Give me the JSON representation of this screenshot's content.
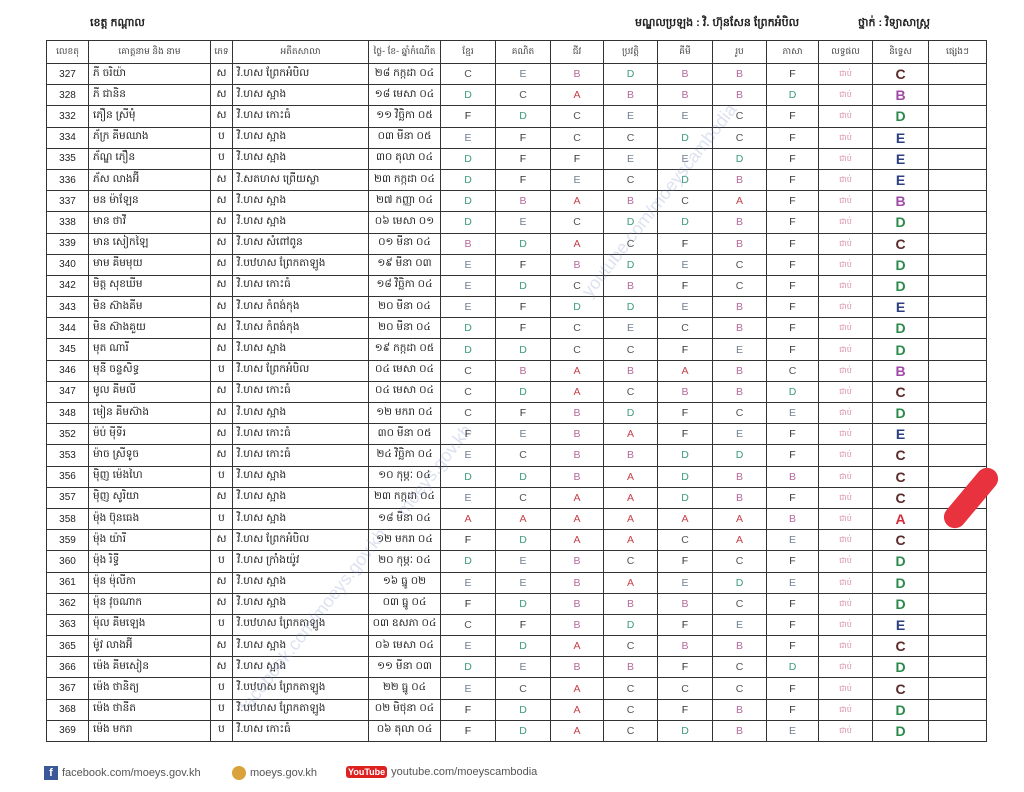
{
  "header": {
    "province": "ខេត្ត កណ្ដាល",
    "exam_center": "មណ្ឌលប្រឡង : វិ. ហ៊ុនសែន ព្រែកអំបិល",
    "class": "ថ្នាក់ : វិទ្យាសាស្ត្រ"
  },
  "columns": [
    "លេខតុ",
    "គោត្តនាម និង នាម",
    "ភេទ",
    "អតីតសាលា",
    "ថ្ងៃ- ខែ- ឆ្នាំកំណើត",
    "ខ្មែរ",
    "គណិត",
    "ជីវ",
    "ប្រវត្តិ",
    "គីមី",
    "រូប",
    "ភាសា",
    "លទ្ធផល",
    "និទ្ទេស",
    "ផ្សេងៗ"
  ],
  "grade_colors": {
    "A": "#c4404a",
    "B": "#b5699a",
    "C": "#555555",
    "D": "#3d9a7a",
    "E": "#6f7f92",
    "F": "#333333"
  },
  "final_grade_colors": {
    "A": "#d42a3a",
    "B": "#a04aa8",
    "C": "#5a2a2a",
    "D": "#2a8a4a",
    "E": "#2c4080"
  },
  "rows": [
    {
      "id": "327",
      "name": "ភី ចរិយ៉ា",
      "sex": "ស",
      "school": "វិ.ហស ព្រែកអំបិល",
      "dob": "២៨ កក្កដា ០៤",
      "scores": [
        "C",
        "E",
        "B",
        "D",
        "B",
        "B",
        "F"
      ],
      "result": "ជាប់",
      "grade": "C"
    },
    {
      "id": "328",
      "name": "ភី ជានិន",
      "sex": "ស",
      "school": "វិ.ហស ស្អាង",
      "dob": "១៨ មេសា ០៤",
      "scores": [
        "D",
        "C",
        "A",
        "B",
        "B",
        "B",
        "D"
      ],
      "result": "ជាប់",
      "grade": "B"
    },
    {
      "id": "332",
      "name": "ភឿន ស្រីមុំ",
      "sex": "ស",
      "school": "វិ.ហស កោះធំ",
      "dob": "១១ វិច្ឆិកា ០៥",
      "scores": [
        "F",
        "D",
        "C",
        "E",
        "E",
        "C",
        "F"
      ],
      "result": "ជាប់",
      "grade": "D"
    },
    {
      "id": "334",
      "name": "ភ័ក្រ គីមឈាង",
      "sex": "ប",
      "school": "វិ.ហស ស្អាង",
      "dob": "០៣ មីនា ០៥",
      "scores": [
        "E",
        "F",
        "C",
        "C",
        "D",
        "C",
        "F"
      ],
      "result": "ជាប់",
      "grade": "E"
    },
    {
      "id": "335",
      "name": "ភ័ណ្ឌ ភឿន",
      "sex": "ប",
      "school": "វិ.ហស ស្អាង",
      "dob": "៣០ តុលា ០៤",
      "scores": [
        "D",
        "F",
        "F",
        "E",
        "E",
        "D",
        "F"
      ],
      "result": "ជាប់",
      "grade": "E"
    },
    {
      "id": "336",
      "name": "ភ័ស លាងអ៊ី",
      "sex": "ស",
      "school": "វិ.សតហស ព្រើយស្លា",
      "dob": "២៣ កក្កដា ០៤",
      "scores": [
        "D",
        "F",
        "E",
        "C",
        "D",
        "B",
        "F"
      ],
      "result": "ជាប់",
      "grade": "E"
    },
    {
      "id": "337",
      "name": "មន ម៉ាឡែន",
      "sex": "ស",
      "school": "វិ.ហស ស្អាង",
      "dob": "២៧ កញ្ញា ០៤",
      "scores": [
        "D",
        "B",
        "A",
        "B",
        "C",
        "A",
        "F"
      ],
      "result": "ជាប់",
      "grade": "B"
    },
    {
      "id": "338",
      "name": "មាន ថាវី",
      "sex": "ស",
      "school": "វិ.ហស ស្អាង",
      "dob": "០៦ មេសា ០១",
      "scores": [
        "D",
        "E",
        "C",
        "D",
        "D",
        "B",
        "F"
      ],
      "result": "ជាប់",
      "grade": "D"
    },
    {
      "id": "339",
      "name": "មាន សៀកឡៃ",
      "sex": "ស",
      "school": "វិ.ហស សំពៅពូន",
      "dob": "០១ មីនា ០៤",
      "scores": [
        "B",
        "D",
        "A",
        "C",
        "F",
        "B",
        "F"
      ],
      "result": "ជាប់",
      "grade": "C"
    },
    {
      "id": "340",
      "name": "មាម គីមមុយ",
      "sex": "ស",
      "school": "វិ.បឋហស ព្រែកតាឡូង",
      "dob": "១៩ មីនា ០៣",
      "scores": [
        "E",
        "F",
        "B",
        "D",
        "E",
        "C",
        "F"
      ],
      "result": "ជាប់",
      "grade": "D"
    },
    {
      "id": "342",
      "name": "មិត្ត សុខឃីម",
      "sex": "ស",
      "school": "វិ.ហស កោះធំ",
      "dob": "១៨ វិច្ឆិកា ០៤",
      "scores": [
        "E",
        "D",
        "C",
        "B",
        "F",
        "C",
        "F"
      ],
      "result": "ជាប់",
      "grade": "D"
    },
    {
      "id": "343",
      "name": "មិន ស៊ាងគីម",
      "sex": "ស",
      "school": "វិ.ហស កំពង់កុង",
      "dob": "២០ មីនា ០៤",
      "scores": [
        "E",
        "F",
        "D",
        "D",
        "E",
        "B",
        "F"
      ],
      "result": "ជាប់",
      "grade": "E"
    },
    {
      "id": "344",
      "name": "មិន ស៊ាងគួយ",
      "sex": "ស",
      "school": "វិ.ហស កំពង់កុង",
      "dob": "២០ មីនា ០៤",
      "scores": [
        "D",
        "F",
        "C",
        "E",
        "C",
        "B",
        "F"
      ],
      "result": "ជាប់",
      "grade": "D"
    },
    {
      "id": "345",
      "name": "មុត ណារី",
      "sex": "ស",
      "school": "វិ.ហស ស្អាង",
      "dob": "១៩ កក្កដា ០៥",
      "scores": [
        "D",
        "D",
        "C",
        "C",
        "F",
        "E",
        "F"
      ],
      "result": "ជាប់",
      "grade": "D"
    },
    {
      "id": "346",
      "name": "មុនី ចន្ទសិទ្ធ",
      "sex": "ប",
      "school": "វិ.ហស ព្រែកអំបិល",
      "dob": "០៤ មេសា ០៤",
      "scores": [
        "C",
        "B",
        "A",
        "B",
        "A",
        "B",
        "C"
      ],
      "result": "ជាប់",
      "grade": "B"
    },
    {
      "id": "347",
      "name": "មូល គីមលី",
      "sex": "ស",
      "school": "វិ.ហស កោះធំ",
      "dob": "០៤ មេសា ០៤",
      "scores": [
        "C",
        "D",
        "A",
        "C",
        "B",
        "B",
        "D"
      ],
      "result": "ជាប់",
      "grade": "C"
    },
    {
      "id": "348",
      "name": "មៀន គីមស៊ាង",
      "sex": "ស",
      "school": "វិ.ហស ស្អាង",
      "dob": "១២ មករា ០៤",
      "scores": [
        "C",
        "F",
        "B",
        "D",
        "F",
        "C",
        "E"
      ],
      "result": "ជាប់",
      "grade": "D"
    },
    {
      "id": "352",
      "name": "ម៉ប់ ម៉ីទីរ",
      "sex": "ស",
      "school": "វិ.ហស កោះធំ",
      "dob": "៣០ មីនា ០៥",
      "scores": [
        "F",
        "E",
        "B",
        "A",
        "F",
        "E",
        "F"
      ],
      "result": "ជាប់",
      "grade": "E"
    },
    {
      "id": "353",
      "name": "ម៉ាច ស្រីទូច",
      "sex": "ស",
      "school": "វិ.ហស កោះធំ",
      "dob": "២៤ វិច្ឆិកា ០៤",
      "scores": [
        "E",
        "C",
        "B",
        "B",
        "D",
        "D",
        "F"
      ],
      "result": "ជាប់",
      "grade": "C"
    },
    {
      "id": "356",
      "name": "ម៉ិញ ម៉េងហៃ",
      "sex": "ប",
      "school": "វិ.ហស ស្អាង",
      "dob": "១០ កុម្ភៈ ០៤",
      "scores": [
        "D",
        "D",
        "B",
        "A",
        "D",
        "B",
        "B"
      ],
      "result": "ជាប់",
      "grade": "C"
    },
    {
      "id": "357",
      "name": "ម៉ិញ សូរិយា",
      "sex": "ស",
      "school": "វិ.ហស ស្អាង",
      "dob": "២៣ កក្កដា ០៤",
      "scores": [
        "E",
        "C",
        "A",
        "A",
        "D",
        "B",
        "F"
      ],
      "result": "ជាប់",
      "grade": "C"
    },
    {
      "id": "358",
      "name": "ម៉ុង ប៊ុនធេង",
      "sex": "ប",
      "school": "វិ.ហស ស្អាង",
      "dob": "១៨ មីនា ០៤",
      "scores": [
        "A",
        "A",
        "A",
        "A",
        "A",
        "A",
        "B"
      ],
      "result": "ជាប់",
      "grade": "A"
    },
    {
      "id": "359",
      "name": "ម៉ុង យ៉ារី",
      "sex": "ស",
      "school": "វិ.ហស ព្រែកអំបិល",
      "dob": "១២ មករា ០៤",
      "scores": [
        "F",
        "D",
        "A",
        "A",
        "C",
        "A",
        "E"
      ],
      "result": "ជាប់",
      "grade": "C"
    },
    {
      "id": "360",
      "name": "ម៉ុង រិទ្ធី",
      "sex": "ប",
      "school": "វិ.ហស ក្រាំងយ៉ូវ",
      "dob": "២០ កុម្ភៈ ០៤",
      "scores": [
        "D",
        "E",
        "B",
        "C",
        "F",
        "C",
        "F"
      ],
      "result": "ជាប់",
      "grade": "D"
    },
    {
      "id": "361",
      "name": "ម៉ុន ម៉ុលីកា",
      "sex": "ស",
      "school": "វិ.ហស ស្អាង",
      "dob": "១៦ ធ្នូ ០២",
      "scores": [
        "E",
        "E",
        "B",
        "A",
        "E",
        "D",
        "E"
      ],
      "result": "ជាប់",
      "grade": "D"
    },
    {
      "id": "362",
      "name": "ម៉ុន វុចណាក",
      "sex": "ស",
      "school": "វិ.ហស ស្អាង",
      "dob": "០៣ ធ្នូ ០៤",
      "scores": [
        "F",
        "D",
        "B",
        "B",
        "B",
        "C",
        "F"
      ],
      "result": "ជាប់",
      "grade": "D"
    },
    {
      "id": "363",
      "name": "ម៉ុល គីមឡេង",
      "sex": "ប",
      "school": "វិ.បឋហស ព្រែកតាឡូង",
      "dob": "០៣ ឧសភា ០៤",
      "scores": [
        "C",
        "F",
        "B",
        "D",
        "F",
        "E",
        "F"
      ],
      "result": "ជាប់",
      "grade": "E"
    },
    {
      "id": "365",
      "name": "ម៉ូវ លាងអ៊ី",
      "sex": "ស",
      "school": "វិ.ហស ស្អាង",
      "dob": "០៦ មេសា ០៤",
      "scores": [
        "E",
        "D",
        "A",
        "C",
        "B",
        "B",
        "F"
      ],
      "result": "ជាប់",
      "grade": "C"
    },
    {
      "id": "366",
      "name": "ម៉េង គីមសៀន",
      "sex": "ស",
      "school": "វិ.ហស ស្អាង",
      "dob": "១១ មីនា ០៣",
      "scores": [
        "D",
        "E",
        "B",
        "B",
        "F",
        "C",
        "D"
      ],
      "result": "ជាប់",
      "grade": "D"
    },
    {
      "id": "367",
      "name": "ម៉េង ថានិត្យ",
      "sex": "ប",
      "school": "វិ.បឋហស ព្រែកតាឡូង",
      "dob": "២២ ធ្នូ ០៤",
      "scores": [
        "E",
        "C",
        "A",
        "C",
        "C",
        "C",
        "F"
      ],
      "result": "ជាប់",
      "grade": "C"
    },
    {
      "id": "368",
      "name": "ម៉េង ថានីត",
      "sex": "ប",
      "school": "វិ.បឋហស ព្រែកតាឡូង",
      "dob": "០២ មិថុនា ០៤",
      "scores": [
        "F",
        "D",
        "A",
        "C",
        "F",
        "B",
        "F"
      ],
      "result": "ជាប់",
      "grade": "D"
    },
    {
      "id": "369",
      "name": "ម៉េង មករា",
      "sex": "ប",
      "school": "វិ.ហស កោះធំ",
      "dob": "០៦ តុលា ០៤",
      "scores": [
        "F",
        "D",
        "A",
        "C",
        "D",
        "B",
        "E"
      ],
      "result": "ជាប់",
      "grade": "D"
    }
  ],
  "watermarks": [
    "youtube.com/moeyscambodia",
    "moeys.gov.kh",
    "facebook.com/moeys.gov.kh"
  ],
  "footer": {
    "facebook": "facebook.com/moeys.gov.kh",
    "website": "moeys.gov.kh",
    "youtube_logo": "YouTube",
    "youtube": "youtube.com/moeyscambodia"
  }
}
